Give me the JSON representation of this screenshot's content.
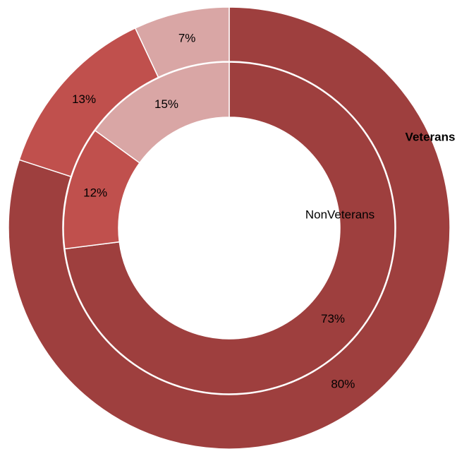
{
  "chart_data": {
    "type": "donut",
    "colors": [
      "#9e3f3e",
      "#c0504d",
      "#d9a6a5"
    ],
    "series": [
      {
        "name": "Veterans",
        "values": [
          80,
          13,
          7
        ],
        "value_labels": [
          "80%",
          "13%",
          "7%"
        ]
      },
      {
        "name": "NonVeterans",
        "values": [
          73,
          12,
          15
        ],
        "value_labels": [
          "73%",
          "12%",
          "15%"
        ]
      }
    ]
  }
}
